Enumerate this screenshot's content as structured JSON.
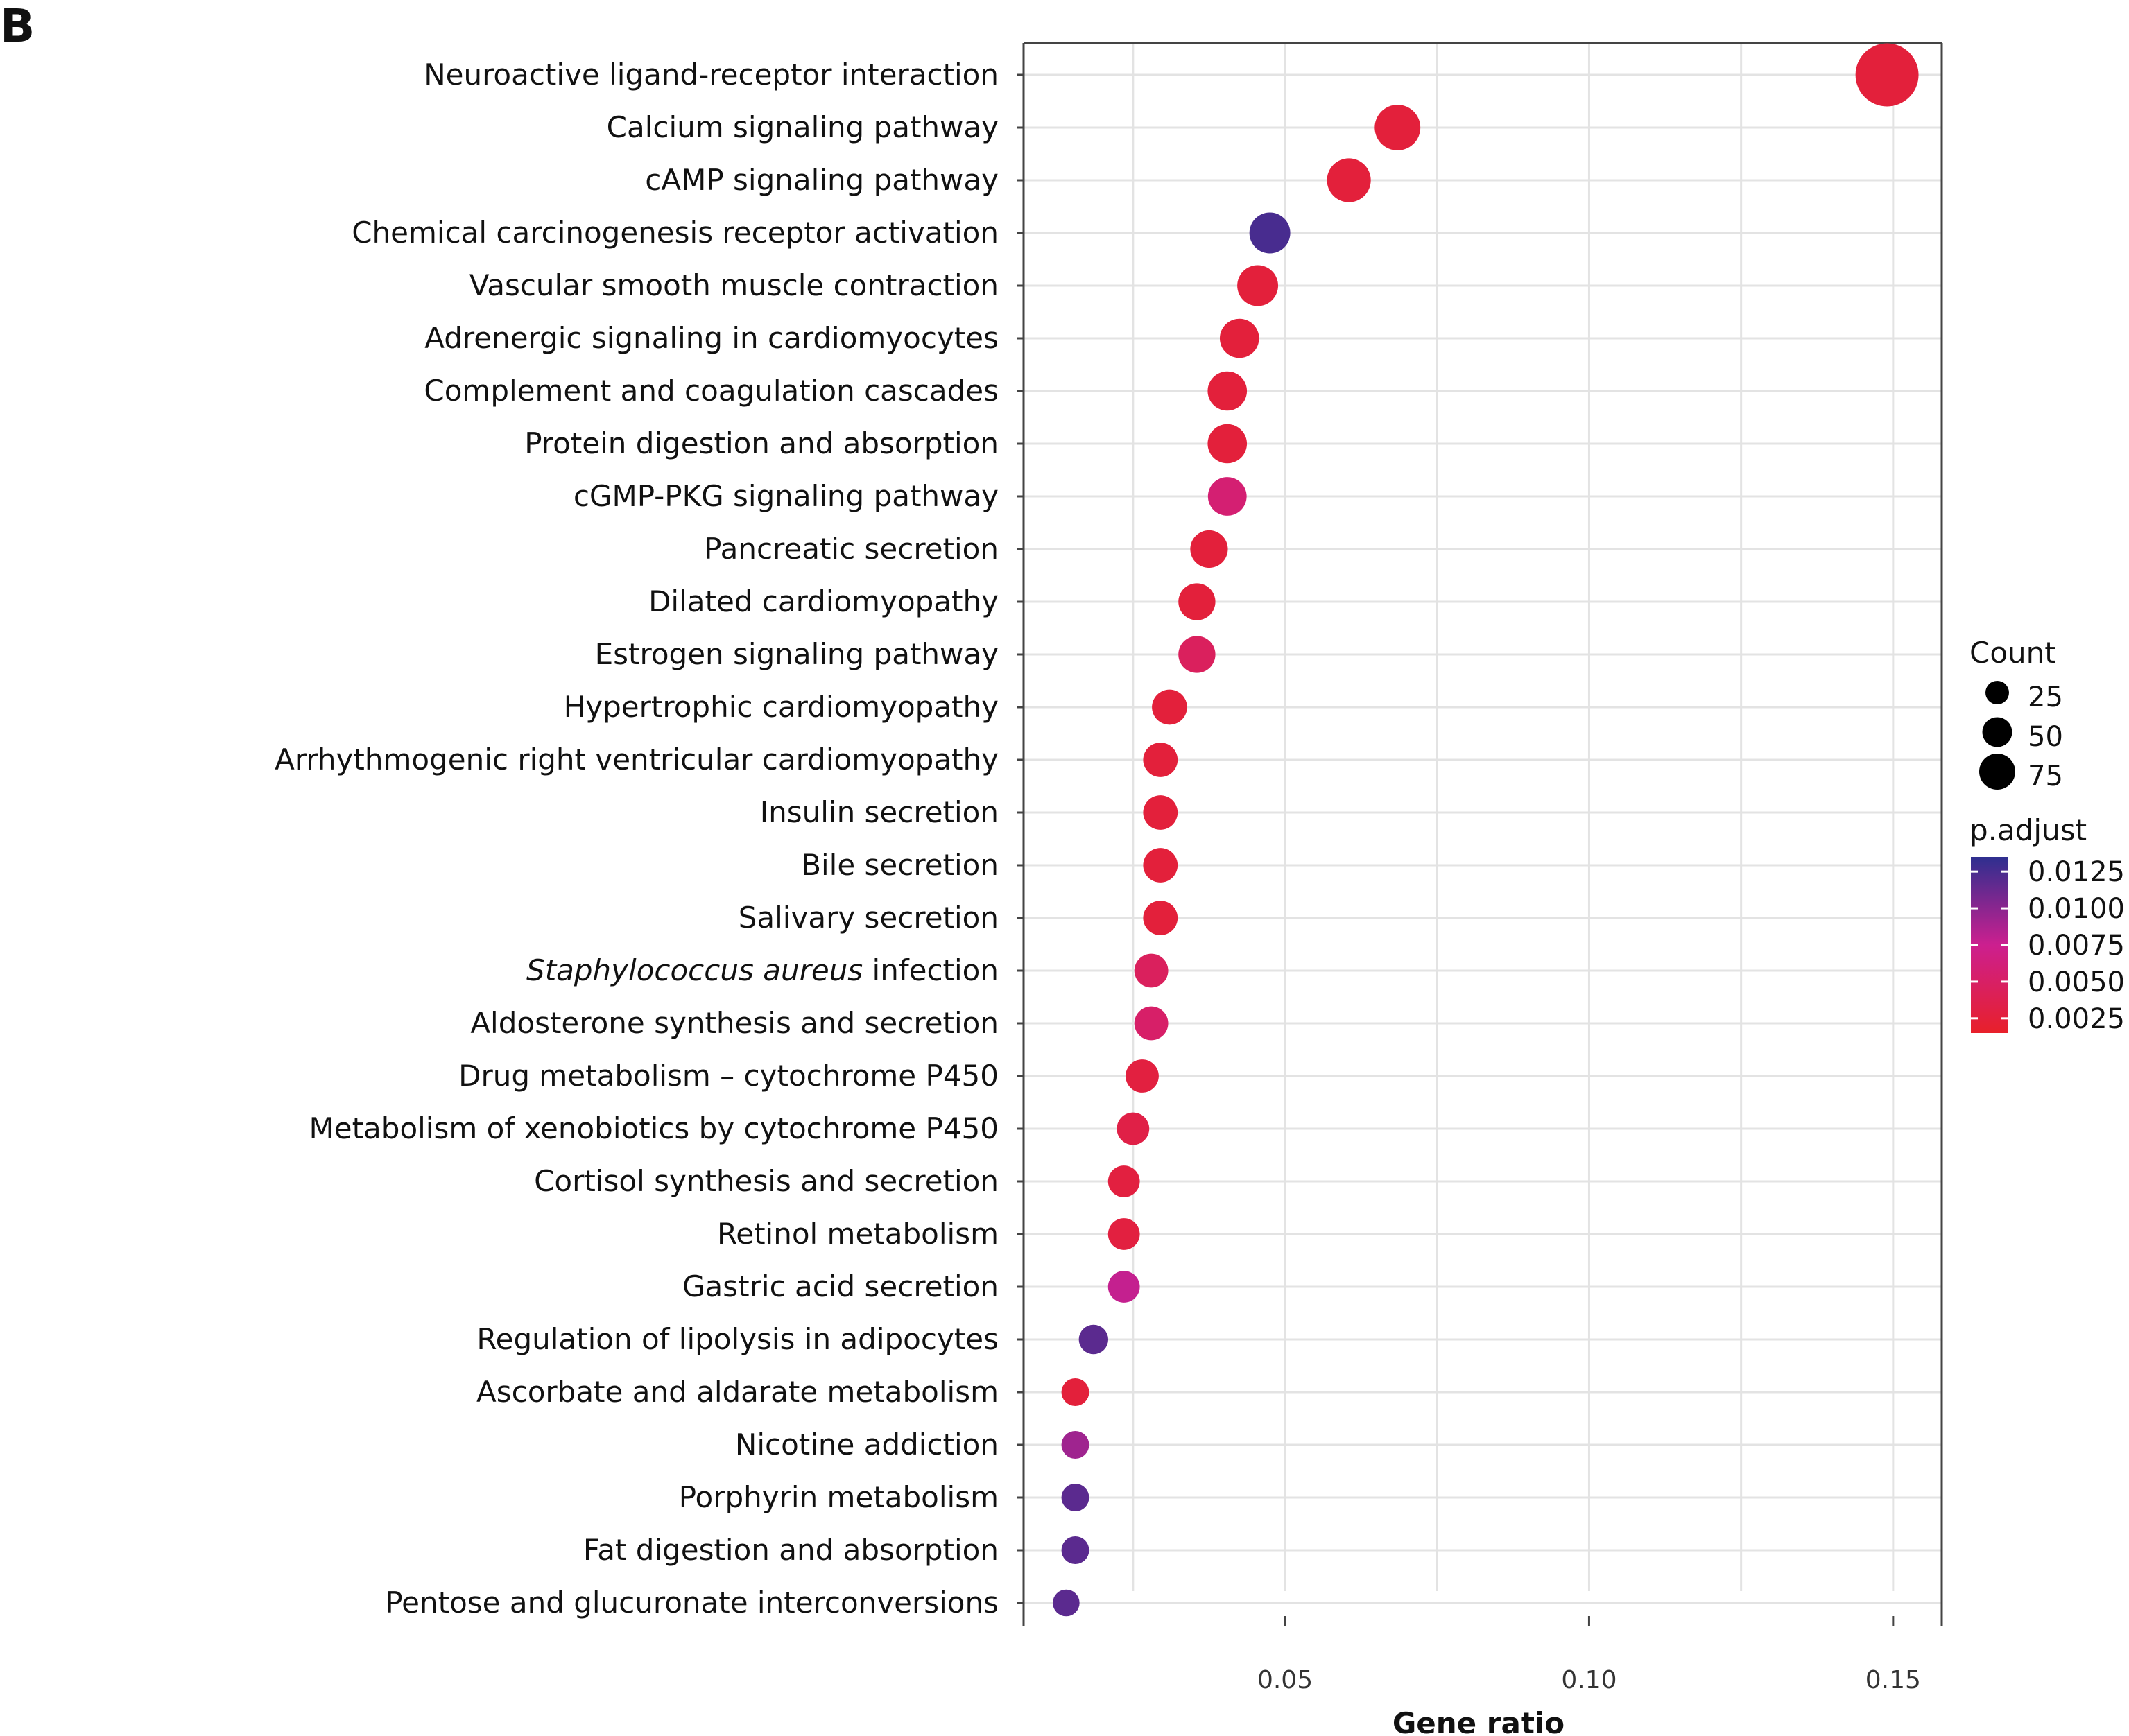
{
  "panel_label": "B",
  "chart_data": {
    "type": "scatter",
    "xlabel": "Gene ratio",
    "ylabel": "",
    "xlim": [
      0.007,
      0.158
    ],
    "xticks": [
      0.05,
      0.1,
      0.15
    ],
    "xtick_labels": [
      "0.05",
      "0.10",
      "0.15"
    ],
    "grid": true,
    "categories": [
      "Neuroactive ligand-receptor interaction",
      "Calcium signaling pathway",
      "cAMP signaling pathway",
      "Chemical carcinogenesis receptor activation",
      "Vascular smooth muscle contraction",
      "Adrenergic signaling in cardiomyocytes",
      "Complement and coagulation cascades",
      "Protein digestion and absorption",
      "cGMP-PKG signaling pathway",
      "Pancreatic secretion",
      "Dilated cardiomyopathy",
      "Estrogen signaling pathway",
      "Hypertrophic cardiomyopathy",
      "Arrhythmogenic right ventricular cardiomyopathy",
      "Insulin secretion",
      "Bile secretion",
      "Salivary secretion",
      "Staphylococcus aureus infection",
      "Aldosterone synthesis and secretion",
      "Drug metabolism – cytochrome P450",
      "Metabolism of xenobiotics by cytochrome P450",
      "Cortisol synthesis and secretion",
      "Retinol metabolism",
      "Gastric acid secretion",
      "Regulation of lipolysis in adipocytes",
      "Ascorbate and aldarate metabolism",
      "Nicotine addiction",
      "Porphyrin metabolism",
      "Fat digestion and absorption",
      "Pentose and glucuronate interconversions"
    ],
    "italic_parts": {
      "17": "Staphylococcus aureus"
    },
    "gene_ratio": [
      0.149,
      0.0685,
      0.0605,
      0.0475,
      0.0455,
      0.0425,
      0.0405,
      0.0405,
      0.0405,
      0.0375,
      0.0355,
      0.0355,
      0.031,
      0.0295,
      0.0295,
      0.0295,
      0.0295,
      0.028,
      0.028,
      0.0265,
      0.025,
      0.0235,
      0.0235,
      0.0235,
      0.0185,
      0.0155,
      0.0155,
      0.0155,
      0.0155,
      0.014
    ],
    "count": [
      88,
      40,
      36,
      30,
      30,
      27,
      27,
      27,
      26,
      24,
      23,
      23,
      20,
      19,
      19,
      19,
      19,
      18,
      18,
      17,
      16,
      15,
      15,
      15,
      12,
      10,
      10,
      10,
      10,
      9
    ],
    "p_adjust": [
      0.0025,
      0.0025,
      0.0025,
      0.0125,
      0.0025,
      0.0025,
      0.0025,
      0.0025,
      0.0058,
      0.0025,
      0.0025,
      0.0045,
      0.0025,
      0.0025,
      0.0025,
      0.0025,
      0.0025,
      0.0045,
      0.0052,
      0.0028,
      0.0032,
      0.0028,
      0.0028,
      0.0078,
      0.0118,
      0.0025,
      0.0092,
      0.0118,
      0.0118,
      0.0118
    ],
    "legend_size": {
      "title": "Count",
      "values": [
        25,
        50,
        75
      ],
      "labels": [
        "25",
        "50",
        "75"
      ]
    },
    "legend_color": {
      "title": "p.adjust",
      "range": [
        0.0015,
        0.0135
      ],
      "values": [
        0.0125,
        0.01,
        0.0075,
        0.005,
        0.0025
      ],
      "labels": [
        "0.0125",
        "0.0100",
        "0.0075",
        "0.0050",
        "0.0025"
      ],
      "color_low": "#e8202a",
      "color_mid": "#cc1f8f",
      "color_high": "#2e2f8f"
    },
    "legend_position": "right"
  }
}
